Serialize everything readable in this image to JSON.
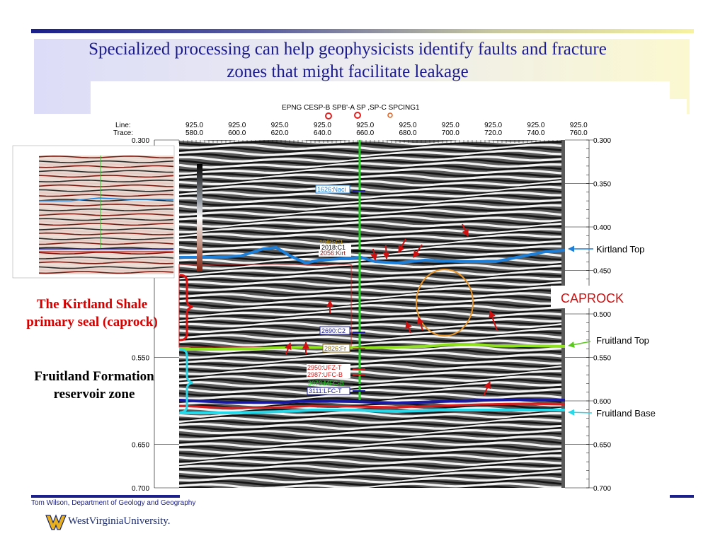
{
  "slide": {
    "title_line1": "Specialized processing can help geophysicists identify faults and fracture",
    "title_line2": "zones that might facilitate leakage",
    "caprock_label_line1": "The Kirtland Shale",
    "caprock_label_line2": "primary seal (caprock)",
    "reservoir_label_line1": "Fruitland Formation",
    "reservoir_label_line2": "reservoir zone",
    "footer": "Tom Wilson, Department of Geology and Geography",
    "logo_text": "WestVirginiaUniversity."
  },
  "colors": {
    "title": "#1a1a8c",
    "caprock_label": "#d40000",
    "reservoir_label": "#000000",
    "kirtland_horizon": "#1e7fd8",
    "fruitland_top_horizon": "#8fe01e",
    "fruitland_base_horizon": "#26d8e8",
    "navy_horizon": "#1a1aa0",
    "red_horizon": "#d81e1e",
    "well_line": "#22cc22",
    "caprock_ellipse": "#e8962a",
    "annotation_arrow": "#d01010"
  },
  "seismic": {
    "header": "EPNG CESP-B SPB'-A SP ,SP-C SPCING1",
    "line_label": "Line:",
    "trace_label": "Trace:",
    "line_values": [
      "925.0",
      "925.0",
      "925.0",
      "925.0",
      "925.0",
      "925.0",
      "925.0",
      "925.0",
      "925.0",
      "925.0"
    ],
    "trace_values": [
      "580.0",
      "600.0",
      "620.0",
      "640.0",
      "660.0",
      "680.0",
      "700.0",
      "720.0",
      "740.0",
      "760.0"
    ],
    "time_ticks_left": [
      "0.300",
      "0.550",
      "0.650",
      "0.700"
    ],
    "time_ticks_right": [
      "0.300",
      "0.350",
      "0.400",
      "0.450",
      "0.500",
      "0.550",
      "0.600",
      "0.650",
      "0.700"
    ],
    "well_tops": {
      "nacimiento": "1626:Naci",
      "c1_a": "1989:C1",
      "c1_b": "2018:C1",
      "kirtland": "2056:Kirt",
      "c2": "2690:C2",
      "fruitland": "2826:Fr",
      "ufc_t": "2950:UFZ-T",
      "ufc_b": "2987:UFC-B",
      "mfc": "3073:MFC-B",
      "lfc": "3111:LFC-T"
    },
    "horizon_labels": {
      "kirtland_top": "Kirtland Top",
      "caprock": "CAPROCK",
      "fruitland_top": "Fruitland Top",
      "fruitland_base": "Fruitland Base"
    }
  }
}
